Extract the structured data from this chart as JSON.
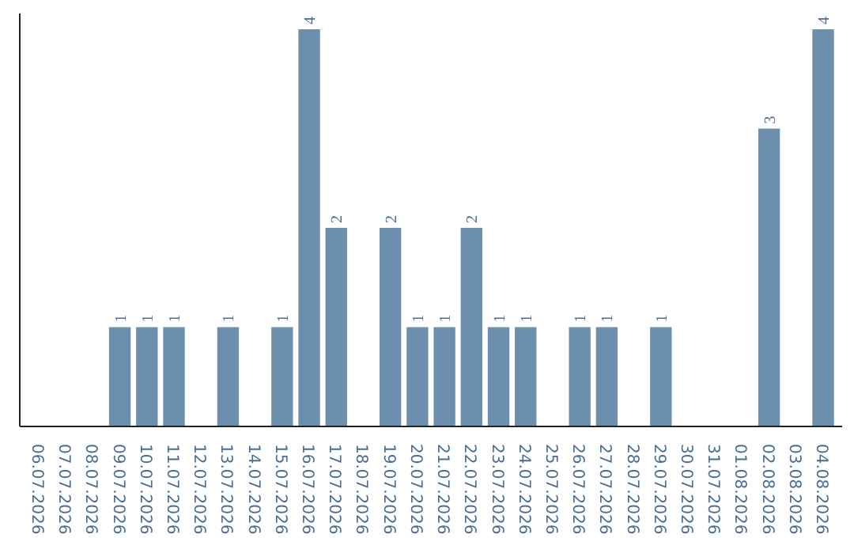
{
  "chart_data": {
    "type": "bar",
    "categories": [
      "06.07.2026",
      "07.07.2026",
      "08.07.2026",
      "09.07.2026",
      "10.07.2026",
      "11.07.2026",
      "12.07.2026",
      "13.07.2026",
      "14.07.2026",
      "15.07.2026",
      "16.07.2026",
      "17.07.2026",
      "18.07.2026",
      "19.07.2026",
      "20.07.2026",
      "21.07.2026",
      "22.07.2026",
      "23.07.2026",
      "24.07.2026",
      "25.07.2026",
      "26.07.2026",
      "27.07.2026",
      "28.07.2026",
      "29.07.2026",
      "30.07.2026",
      "31.07.2026",
      "01.08.2026",
      "02.08.2026",
      "03.08.2026",
      "04.08.2026"
    ],
    "values": [
      0,
      0,
      0,
      1,
      1,
      1,
      0,
      1,
      0,
      1,
      4,
      2,
      0,
      2,
      1,
      1,
      2,
      1,
      1,
      0,
      1,
      1,
      0,
      1,
      0,
      0,
      0,
      3,
      0,
      4
    ],
    "value_labels": [
      null,
      null,
      null,
      "1",
      "1",
      "1",
      null,
      "1",
      null,
      "1",
      "4",
      "2",
      null,
      "2",
      "1",
      "1",
      "2",
      "1",
      "1",
      null,
      "1",
      "1",
      null,
      "1",
      null,
      null,
      null,
      "3",
      null,
      "4"
    ],
    "color": "#6d8fae",
    "ylim": [
      0,
      4
    ],
    "grid": false,
    "tick_labels": "x"
  }
}
